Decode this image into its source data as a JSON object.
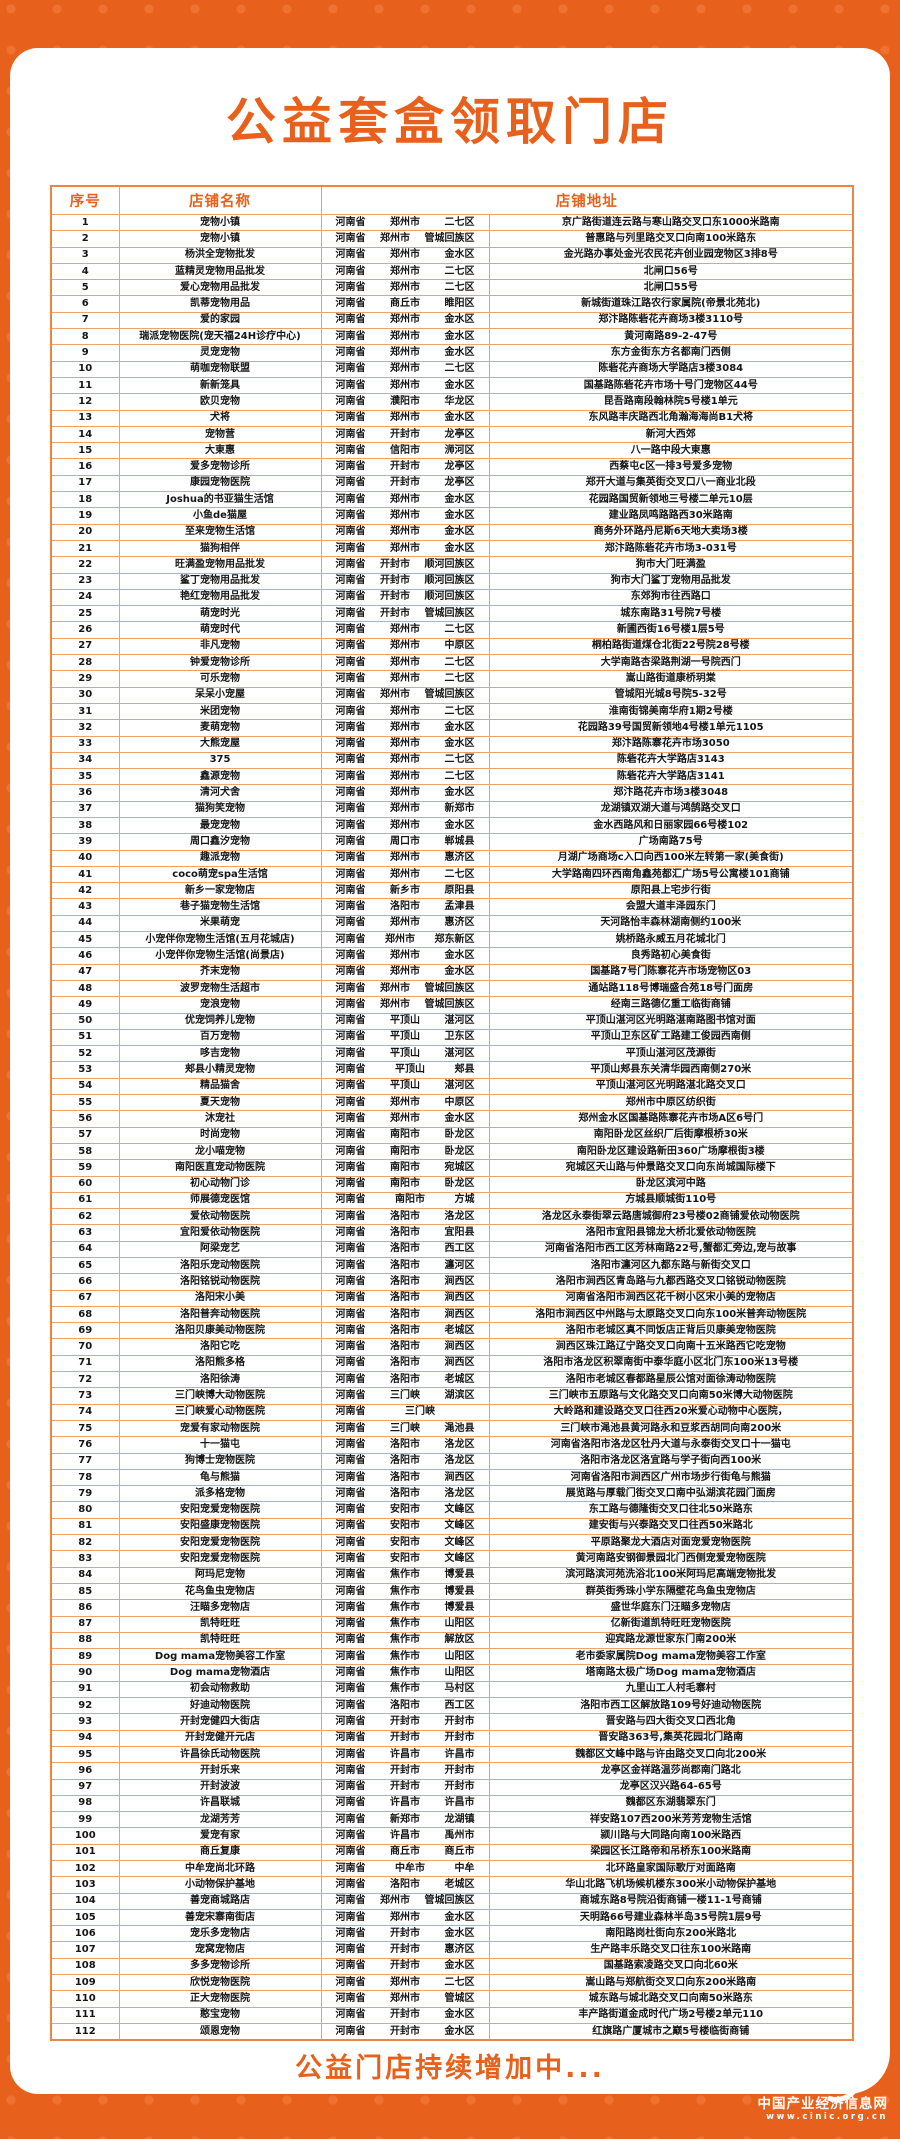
{
  "page": {
    "title": "公益套盒领取门店",
    "footer": "公益门店持续增加中...",
    "watermark": {
      "site_name": "中国产业经济信息网",
      "site_url": "www.cinic.org.cn"
    },
    "colors": {
      "accent": "#e8611c",
      "table_line": "#f0a265",
      "background_dot": "#ef7231",
      "card": "#ffffff"
    }
  },
  "table": {
    "headers": {
      "index": "序号",
      "name": "店铺名称",
      "address": "店铺地址"
    },
    "rows": [
      [
        1,
        "宠物小镇",
        "河南省",
        "郑州市",
        "二七区",
        "京广路街道连云路与寒山路交叉口东1000米路南"
      ],
      [
        2,
        "宠物小镇",
        "河南省",
        "郑州市",
        "管城回族区",
        "普惠路与列里路交叉口向南100米路东"
      ],
      [
        3,
        "杨洪全宠物批发",
        "河南省",
        "郑州市",
        "金水区",
        "金光路办事处金光农民花卉创业园宠物区3排8号"
      ],
      [
        4,
        "蓝精灵宠物用品批发",
        "河南省",
        "郑州市",
        "二七区",
        "北闸口56号"
      ],
      [
        5,
        "爱心宠物用品批发",
        "河南省",
        "郑州市",
        "二七区",
        "北闸口55号"
      ],
      [
        6,
        "凯蒂宠物用品",
        "河南省",
        "商丘市",
        "睢阳区",
        "新城街道珠江路农行家属院(帝景北苑北)"
      ],
      [
        7,
        "爱的家园",
        "河南省",
        "郑州市",
        "金水区",
        "郑汴路陈砦花卉商场3楼3110号"
      ],
      [
        8,
        "瑞派宠物医院(宠天福24H诊疗中心)",
        "河南省",
        "郑州市",
        "金水区",
        "黄河南路89-2-47号"
      ],
      [
        9,
        "灵宠宠物",
        "河南省",
        "郑州市",
        "金水区",
        "东方金街东方名都南门西侧"
      ],
      [
        10,
        "萌咖宠物联盟",
        "河南省",
        "郑州市",
        "二七区",
        "陈砦花卉商场大学路店3楼3084"
      ],
      [
        11,
        "新新笼具",
        "河南省",
        "郑州市",
        "金水区",
        "国基路陈砦花卉市场十号门宠物区44号"
      ],
      [
        12,
        "欧贝宠物",
        "河南省",
        "濮阳市",
        "华龙区",
        "昆吾路南段翰林院5号楼1单元"
      ],
      [
        13,
        "犬将",
        "河南省",
        "郑州市",
        "金水区",
        "东风路丰庆路西北角瀚海海尚B1犬将"
      ],
      [
        14,
        "宠物营",
        "河南省",
        "开封市",
        "龙亭区",
        "新河大西郊"
      ],
      [
        15,
        "大東惠",
        "河南省",
        "信阳市",
        "浉河区",
        "八一路中段大東惠"
      ],
      [
        16,
        "爱多宠物诊所",
        "河南省",
        "开封市",
        "龙亭区",
        "西蔡屯c区一排3号爱多宠物"
      ],
      [
        17,
        "康园宠物医院",
        "河南省",
        "开封市",
        "龙亭区",
        "郑开大道与集英街交叉口八一商业北段"
      ],
      [
        18,
        "Joshua的书亚猫生活馆",
        "河南省",
        "郑州市",
        "金水区",
        "花园路国贸新领地三号楼二单元10层"
      ],
      [
        19,
        "小鱼de猫屋",
        "河南省",
        "郑州市",
        "金水区",
        "建业路凤鸣路路西30米路南"
      ],
      [
        20,
        "至来宠物生活馆",
        "河南省",
        "郑州市",
        "金水区",
        "商务外环路丹尼斯6天地大卖场3楼"
      ],
      [
        21,
        "猫狗相伴",
        "河南省",
        "郑州市",
        "金水区",
        "郑汴路陈砦花卉市场3-031号"
      ],
      [
        22,
        "旺满盈宠物用品批发",
        "河南省",
        "开封市",
        "顺河回族区",
        "狗市大门旺满盈"
      ],
      [
        23,
        "鲨丁宠物用品批发",
        "河南省",
        "开封市",
        "顺河回族区",
        "狗市大门鲨丁宠物用品批发"
      ],
      [
        24,
        "艳红宠物用品批发",
        "河南省",
        "开封市",
        "顺河回族区",
        "东郊狗市往西路口"
      ],
      [
        25,
        "萌宠时光",
        "河南省",
        "开封市",
        "管城回族区",
        "城东南路31号院7号楼"
      ],
      [
        26,
        "萌宠时代",
        "河南省",
        "郑州市",
        "二七区",
        "新圃西街16号楼1层5号"
      ],
      [
        27,
        "非凡宠物",
        "河南省",
        "郑州市",
        "中原区",
        "桐柏路街道煤仓北街22号院28号楼"
      ],
      [
        28,
        "钟爱宠物诊所",
        "河南省",
        "郑州市",
        "二七区",
        "大学南路杏梁路荆湖一号院西门"
      ],
      [
        29,
        "可乐宠物",
        "河南省",
        "郑州市",
        "二七区",
        "嵩山路街道康桥玥棠"
      ],
      [
        30,
        "呆呆小宠屋",
        "河南省",
        "郑州市",
        "管城回族区",
        "管城阳光城8号院5-32号"
      ],
      [
        31,
        "米团宠物",
        "河南省",
        "郑州市",
        "二七区",
        "淮南街锦美南华府1期2号楼"
      ],
      [
        32,
        "麦萌宠物",
        "河南省",
        "郑州市",
        "金水区",
        "花园路39号国贸新领地4号楼1单元1105"
      ],
      [
        33,
        "大熊宠屋",
        "河南省",
        "郑州市",
        "金水区",
        "郑汴路陈寨花卉市场3050"
      ],
      [
        34,
        "375",
        "河南省",
        "郑州市",
        "二七区",
        "陈砦花卉大学路店3143"
      ],
      [
        35,
        "鑫源宠物",
        "河南省",
        "郑州市",
        "二七区",
        "陈砦花卉大学路店3141"
      ],
      [
        36,
        "清河犬舍",
        "河南省",
        "郑州市",
        "金水区",
        "郑汴路花卉市场3楼3048"
      ],
      [
        37,
        "猫狗笑宠物",
        "河南省",
        "郑州市",
        "新郑市",
        "龙湖镇双湖大道与鸿鹄路交叉口"
      ],
      [
        38,
        "最宠宠物",
        "河南省",
        "郑州市",
        "金水区",
        "金水西路风和日丽家园66号楼102"
      ],
      [
        39,
        "周口鑫汐宠物",
        "河南省",
        "周口市",
        "郸城县",
        "广场南路75号"
      ],
      [
        40,
        "趣派宠物",
        "河南省",
        "郑州市",
        "惠济区",
        "月湖广场商场c入口向西100米左转第一家(美食街)"
      ],
      [
        41,
        "coco萌宠spa生活馆",
        "河南省",
        "郑州市",
        "二七区",
        "大学路南四环西南角鑫苑都汇广场5号公寓楼101商铺"
      ],
      [
        42,
        "新乡一家宠物店",
        "河南省",
        "新乡市",
        "原阳县",
        "原阳县上宅步行街"
      ],
      [
        43,
        "巷子猫宠物生活馆",
        "河南省",
        "洛阳市",
        "孟津县",
        "会盟大道丰泽园东门"
      ],
      [
        44,
        "米果萌宠",
        "河南省",
        "郑州市",
        "惠济区",
        "天河路怡丰森林湖南侧约100米"
      ],
      [
        45,
        "小宠伴你宠物生活馆(五月花城店)",
        "河南省",
        "郑州市",
        "郑东新区",
        "姚桥路永威五月花城北门"
      ],
      [
        46,
        "小宠伴你宠物生活馆(尚景店)",
        "河南省",
        "郑州市",
        "金水区",
        "良秀路初心美食街"
      ],
      [
        47,
        "芥末宠物",
        "河南省",
        "郑州市",
        "金水区",
        "国基路7号门陈寨花卉市场宠物区03"
      ],
      [
        48,
        "波罗宠物生活超市",
        "河南省",
        "郑州市",
        "管城回族区",
        "通站路118号博瑞盛合苑18号门面房"
      ],
      [
        49,
        "宠浪宠物",
        "河南省",
        "郑州市",
        "管城回族区",
        "经南三路德亿重工临街商铺"
      ],
      [
        50,
        "优宠饲养儿宠物",
        "河南省",
        "平顶山",
        "湛河区",
        "平顶山湛河区光明路湛南路图书馆对面"
      ],
      [
        51,
        "百万宠物",
        "河南省",
        "平顶山",
        "卫东区",
        "平顶山卫东区矿工路建工俊园西南侧"
      ],
      [
        52,
        "哆吉宠物",
        "河南省",
        "平顶山",
        "湛河区",
        "平顶山湛河区茂源街"
      ],
      [
        53,
        "郏县小精灵宠物",
        "河南省",
        "平顶山",
        "郏县",
        "平顶山郏县东关清华园西南侧270米"
      ],
      [
        54,
        "精品猫舍",
        "河南省",
        "平顶山",
        "湛河区",
        "平顶山湛河区光明路湛北路交叉口"
      ],
      [
        55,
        "夏天宠物",
        "河南省",
        "郑州市",
        "中原区",
        "郑州市中原区纺织街"
      ],
      [
        56,
        "沐宠社",
        "河南省",
        "郑州市",
        "金水区",
        "郑州金水区国基路陈寨花卉市场A区6号门"
      ],
      [
        57,
        "时尚宠物",
        "河南省",
        "南阳市",
        "卧龙区",
        "南阳卧龙区丝织厂后街摩根桥30米"
      ],
      [
        58,
        "龙小喵宠物",
        "河南省",
        "南阳市",
        "卧龙区",
        "南阳卧龙区建设路新田360广场摩根街3楼"
      ],
      [
        59,
        "南阳医直宠动物医院",
        "河南省",
        "南阳市",
        "宛城区",
        "宛城区天山路与仲景路交叉口向东尚城国际楼下"
      ],
      [
        60,
        "初心动物门诊",
        "河南省",
        "南阳市",
        "卧龙区",
        "卧龙区滨河中路"
      ],
      [
        61,
        "师展德宠医馆",
        "河南省",
        "南阳市",
        "方城",
        "方城县顺城街110号"
      ],
      [
        62,
        "爱依动物医院",
        "河南省",
        "洛阳市",
        "洛龙区",
        "洛龙区永泰街翠云路唐城御府23号楼02商铺爱依动物医院"
      ],
      [
        63,
        "宜阳爱依动物医院",
        "河南省",
        "洛阳市",
        "宜阳县",
        "洛阳市宜阳县锦龙大桥北爱依动物医院"
      ],
      [
        64,
        "阿梁宠艺",
        "河南省",
        "洛阳市",
        "西工区",
        "河南省洛阳市西工区芳林南路22号,蟹都汇旁边,宠与故事"
      ],
      [
        65,
        "洛阳乐宠动物医院",
        "河南省",
        "洛阳市",
        "瀍河区",
        "洛阳市瀍河区九都东路与新街交叉口"
      ],
      [
        66,
        "洛阳铭锐动物医院",
        "河南省",
        "洛阳市",
        "涧西区",
        "洛阳市涧西区青岛路与九都西路交叉口铭锐动物医院"
      ],
      [
        67,
        "洛阳宋小美",
        "河南省",
        "洛阳市",
        "涧西区",
        "河南省洛阳市涧西区花千树小区宋小美的宠物店"
      ],
      [
        68,
        "洛阳普奔动物医院",
        "河南省",
        "洛阳市",
        "涧西区",
        "洛阳市涧西区中州路与太原路交叉口向东100米普奔动物医院"
      ],
      [
        69,
        "洛阳贝康美动物医院",
        "河南省",
        "洛阳市",
        "老城区",
        "洛阳市老城区真不同饭店正背后贝康美宠物医院"
      ],
      [
        70,
        "洛阳它吃",
        "河南省",
        "洛阳市",
        "涧西区",
        "涧西区珠江路辽宁路交叉口向南十五米路西它吃宠物"
      ],
      [
        71,
        "洛阳熊多格",
        "河南省",
        "洛阳市",
        "涧西区",
        "洛阳市洛龙区积翠南街中泰华庭小区北门东100米13号楼"
      ],
      [
        72,
        "洛阳徐涛",
        "河南省",
        "洛阳市",
        "老城区",
        "洛阳市老城区春都路星辰公馆对面徐涛动物医院"
      ],
      [
        73,
        "三门峡博大动物医院",
        "河南省",
        "三门峡",
        "湖滨区",
        "三门峡市五原路与文化路交叉口向南50米博大动物医院"
      ],
      [
        74,
        "三门峡爱心动物医院",
        "河南省",
        "三门峡",
        "",
        "大岭路和建设路交叉口往西20米爱心动物中心医院，"
      ],
      [
        75,
        "宠爱有家动物医院",
        "河南省",
        "三门峡",
        "渑池县",
        "三门峡市渑池县黄河路永和豆浆西胡同向南200米"
      ],
      [
        76,
        "十一猫屯",
        "河南省",
        "洛阳市",
        "洛龙区",
        "河南省洛阳市洛龙区牡丹大道与永泰街交叉口十一猫屯"
      ],
      [
        77,
        "狗博士宠物医院",
        "河南省",
        "洛阳市",
        "洛龙区",
        "洛阳市洛龙区洛宜路与学子街向西100米"
      ],
      [
        78,
        "龟与熊猫",
        "河南省",
        "洛阳市",
        "涧西区",
        "河南省洛阳市涧西区广州市场步行街龟与熊猫"
      ],
      [
        79,
        "派多格宠物",
        "河南省",
        "洛阳市",
        "洛龙区",
        "展览路与厚载门街交叉口南中弘湖滨花园门面房"
      ],
      [
        80,
        "安阳宠爱宠物医院",
        "河南省",
        "安阳市",
        "文峰区",
        "东工路与德隆街交叉口往北50米路东"
      ],
      [
        81,
        "安阳盛康宠物医院",
        "河南省",
        "安阳市",
        "文峰区",
        "建安街与兴泰路交叉口往西50米路北"
      ],
      [
        82,
        "安阳宠爱宠物医院",
        "河南省",
        "安阳市",
        "文峰区",
        "平原路聚龙大酒店对面宠爱宠物医院"
      ],
      [
        83,
        "安阳宠爱宠物医院",
        "河南省",
        "安阳市",
        "文峰区",
        "黄河南路安钢御景园北门西侧宠爱宠物医院"
      ],
      [
        84,
        "阿玛尼宠物",
        "河南省",
        "焦作市",
        "博爱县",
        "滨河路滨河苑洗浴北100米阿玛尼高端宠物批发"
      ],
      [
        85,
        "花鸟鱼虫宠物店",
        "河南省",
        "焦作市",
        "博爱县",
        "群英街秀珠小学东隔壁花鸟鱼虫宠物店"
      ],
      [
        86,
        "汪瞄多宠物店",
        "河南省",
        "焦作市",
        "博爱县",
        "盛世华庭东门汪瞄多宠物店"
      ],
      [
        87,
        "凯特旺旺",
        "河南省",
        "焦作市",
        "山阳区",
        "亿新街道凯特旺旺宠物医院"
      ],
      [
        88,
        "凯特旺旺",
        "河南省",
        "焦作市",
        "解放区",
        "迎宾路龙源世家东门南200米"
      ],
      [
        89,
        "Dog mama宠物美容工作室",
        "河南省",
        "焦作市",
        "山阳区",
        "老市委家属院Dog mama宠物美容工作室"
      ],
      [
        90,
        "Dog mama宠物酒店",
        "河南省",
        "焦作市",
        "山阳区",
        "塔南路太极广场Dog mama宠物酒店"
      ],
      [
        91,
        "初会动物救助",
        "河南省",
        "焦作市",
        "马村区",
        "九里山工人村毛寨村"
      ],
      [
        92,
        "好迪动物医院",
        "河南省",
        "洛阳市",
        "西工区",
        "洛阳市西工区解放路109号好迪动物医院"
      ],
      [
        93,
        "开封宠健四大街店",
        "河南省",
        "开封市",
        "开封市",
        "晋安路与四大街交叉口西北角"
      ],
      [
        94,
        "开封宠健开元店",
        "河南省",
        "开封市",
        "开封市",
        "晋安路363号,集英花园北门路南"
      ],
      [
        95,
        "许昌徐氏动物医院",
        "河南省",
        "许昌市",
        "许昌市",
        "魏都区文峰中路与许由路交叉口向北200米"
      ],
      [
        96,
        "开封乐来",
        "河南省",
        "开封市",
        "开封市",
        "龙亭区金祥路温莎尚郡南门路北"
      ],
      [
        97,
        "开封波波",
        "河南省",
        "开封市",
        "开封市",
        "龙亭区汉兴路64-65号"
      ],
      [
        98,
        "许昌联城",
        "河南省",
        "许昌市",
        "许昌市",
        "魏都区东湖翡翠东门"
      ],
      [
        99,
        "龙湖芳芳",
        "河南省",
        "新郑市",
        "龙湖镇",
        "祥安路107西200米芳芳宠物生活馆"
      ],
      [
        100,
        "爱宠有家",
        "河南省",
        "许昌市",
        "禹州市",
        "颍川路与大同路向南100米路西"
      ],
      [
        101,
        "商丘复康",
        "河南省",
        "商丘市",
        "商丘市",
        "梁园区长江路帝和吊桥东100米路南"
      ],
      [
        102,
        "中牟宠尚北环路",
        "河南省",
        "中牟市",
        "中牟",
        "北环路皇家国际歌厅对面路南"
      ],
      [
        103,
        "小动物保护基地",
        "河南省",
        "洛阳市",
        "老城区",
        "华山北路飞机场候机楼东300米小动物保护基地"
      ],
      [
        104,
        "善宠商城路店",
        "河南省",
        "郑州市",
        "管城回族区",
        "商城东路8号院沿街商铺一楼11-1号商铺"
      ],
      [
        105,
        "善宠宋寨南街店",
        "河南省",
        "郑州市",
        "金水区",
        "天明路66号建业森林半岛35号院1层9号"
      ],
      [
        106,
        "宠乐多宠物店",
        "河南省",
        "开封市",
        "金水区",
        "南阳路岗杜街向东200米路北"
      ],
      [
        107,
        "宠窝宠物店",
        "河南省",
        "开封市",
        "惠济区",
        "生产路丰乐路交叉口往东100米路南"
      ],
      [
        108,
        "多多宠物诊所",
        "河南省",
        "开封市",
        "金水区",
        "国基路索凌路交叉口向北60米"
      ],
      [
        109,
        "欣悦宠物医院",
        "河南省",
        "郑州市",
        "二七区",
        "嵩山路与郑航街交叉口向东200米路南"
      ],
      [
        110,
        "正大宠物医院",
        "河南省",
        "郑州市",
        "管城区",
        "城东路与城北路交叉口向南50米路东"
      ],
      [
        111,
        "憨宝宠物",
        "河南省",
        "开封市",
        "金水区",
        "丰产路街道金成时代广场2号楼2单元110"
      ],
      [
        112,
        "颂恩宠物",
        "河南省",
        "开封市",
        "金水区",
        "红旗路广厦城市之巅5号楼临街商铺"
      ]
    ]
  }
}
